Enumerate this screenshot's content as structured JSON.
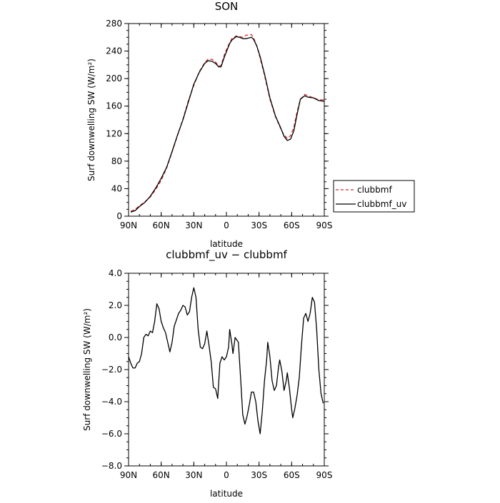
{
  "chart_data": [
    {
      "type": "line",
      "title": "SON",
      "xlabel": "latitude",
      "ylabel": "Surf downwelling SW (W/m²)",
      "xlim": [
        90,
        -90
      ],
      "ylim": [
        0,
        280
      ],
      "x_ticks": [
        90,
        60,
        30,
        0,
        -30,
        -60,
        -90
      ],
      "x_tick_labels": [
        "90N",
        "60N",
        "30N",
        "0",
        "30S",
        "60S",
        "90S"
      ],
      "y_ticks": [
        0,
        40,
        80,
        120,
        160,
        200,
        240,
        280
      ],
      "y_tick_labels": [
        "0",
        "40",
        "80",
        "120",
        "160",
        "200",
        "240",
        "280"
      ],
      "legend": {
        "placement": "right"
      },
      "series": [
        {
          "name": "clubbmf",
          "color": "#d62728",
          "dash": "dashed",
          "points": [
            [
              88,
              7
            ],
            [
              84,
              10
            ],
            [
              80,
              15
            ],
            [
              75,
              21
            ],
            [
              70,
              28
            ],
            [
              65,
              39
            ],
            [
              60,
              52
            ],
            [
              55,
              70
            ],
            [
              50,
              93
            ],
            [
              45,
              117
            ],
            [
              40,
              141
            ],
            [
              35,
              168
            ],
            [
              30,
              190
            ],
            [
              25,
              210
            ],
            [
              20,
              223
            ],
            [
              17,
              228
            ],
            [
              13,
              228
            ],
            [
              10,
              224
            ],
            [
              7,
              218
            ],
            [
              5,
              219
            ],
            [
              2,
              234
            ],
            [
              -1,
              246
            ],
            [
              -3,
              252
            ],
            [
              -5,
              258
            ],
            [
              -9,
              262
            ],
            [
              -12,
              261
            ],
            [
              -15,
              260
            ],
            [
              -18,
              263
            ],
            [
              -23,
              264
            ],
            [
              -25,
              259
            ],
            [
              -28,
              247
            ],
            [
              -31,
              230
            ],
            [
              -35,
              205
            ],
            [
              -40,
              170
            ],
            [
              -45,
              145
            ],
            [
              -50,
              127
            ],
            [
              -53,
              118
            ],
            [
              -56,
              113
            ],
            [
              -59,
              117
            ],
            [
              -62,
              129
            ],
            [
              -65,
              152
            ],
            [
              -68,
              170
            ],
            [
              -72,
              177
            ],
            [
              -75,
              175
            ],
            [
              -80,
              172
            ],
            [
              -85,
              169
            ],
            [
              -90,
              169
            ]
          ]
        },
        {
          "name": "clubbmf_uv",
          "color": "#000000",
          "dash": "solid",
          "points": [
            [
              88,
              6
            ],
            [
              84,
              8
            ],
            [
              80,
              14
            ],
            [
              75,
              20
            ],
            [
              70,
              29
            ],
            [
              65,
              41
            ],
            [
              60,
              55
            ],
            [
              55,
              71
            ],
            [
              50,
              94
            ],
            [
              45,
              118
            ],
            [
              40,
              140
            ],
            [
              35,
              166
            ],
            [
              30,
              192
            ],
            [
              25,
              209
            ],
            [
              20,
              222
            ],
            [
              17,
              226
            ],
            [
              13,
              225
            ],
            [
              10,
              222
            ],
            [
              7,
              217
            ],
            [
              5,
              217
            ],
            [
              2,
              231
            ],
            [
              -1,
              243
            ],
            [
              -3,
              251
            ],
            [
              -5,
              256
            ],
            [
              -9,
              261
            ],
            [
              -12,
              260
            ],
            [
              -15,
              258
            ],
            [
              -18,
              258
            ],
            [
              -23,
              260
            ],
            [
              -25,
              257
            ],
            [
              -28,
              247
            ],
            [
              -31,
              232
            ],
            [
              -35,
              207
            ],
            [
              -40,
              172
            ],
            [
              -45,
              146
            ],
            [
              -50,
              128
            ],
            [
              -53,
              116
            ],
            [
              -56,
              110
            ],
            [
              -59,
              112
            ],
            [
              -62,
              124
            ],
            [
              -65,
              148
            ],
            [
              -68,
              170
            ],
            [
              -72,
              175
            ],
            [
              -75,
              173
            ],
            [
              -80,
              172
            ],
            [
              -85,
              168
            ],
            [
              -90,
              167
            ]
          ]
        }
      ]
    },
    {
      "type": "line",
      "title": "clubbmf_uv − clubbmf",
      "xlabel": "latitude",
      "ylabel": "Surf downwelling SW (W/m²)",
      "xlim": [
        90,
        -90
      ],
      "ylim": [
        -8.0,
        4.0
      ],
      "x_ticks": [
        90,
        60,
        30,
        0,
        -30,
        -60,
        -90
      ],
      "x_tick_labels": [
        "90N",
        "60N",
        "30N",
        "0",
        "30S",
        "60S",
        "90S"
      ],
      "y_ticks": [
        -8,
        -6,
        -4,
        -2,
        0,
        2,
        4
      ],
      "y_tick_labels": [
        "−8.0",
        "−6.0",
        "−4.0",
        "−2.0",
        "0.0",
        "2.0",
        "4.0"
      ],
      "series": [
        {
          "color": "#000000",
          "dash": "solid",
          "points": [
            [
              90,
              -1.2
            ],
            [
              88,
              -1.6
            ],
            [
              86,
              -1.9
            ],
            [
              84,
              -1.9
            ],
            [
              82,
              -1.6
            ],
            [
              80,
              -1.5
            ],
            [
              78,
              -1.0
            ],
            [
              76,
              0.0
            ],
            [
              74,
              0.2
            ],
            [
              72,
              0.1
            ],
            [
              70,
              0.4
            ],
            [
              68,
              0.3
            ],
            [
              66,
              1.0
            ],
            [
              64,
              2.1
            ],
            [
              62,
              1.8
            ],
            [
              60,
              1.0
            ],
            [
              58,
              0.6
            ],
            [
              56,
              0.3
            ],
            [
              54,
              -0.3
            ],
            [
              52,
              -0.9
            ],
            [
              50,
              -0.3
            ],
            [
              48,
              0.7
            ],
            [
              46,
              1.1
            ],
            [
              44,
              1.5
            ],
            [
              42,
              1.7
            ],
            [
              40,
              2.0
            ],
            [
              38,
              1.9
            ],
            [
              36,
              1.4
            ],
            [
              34,
              1.6
            ],
            [
              32,
              2.5
            ],
            [
              30,
              3.1
            ],
            [
              28,
              2.5
            ],
            [
              26,
              0.5
            ],
            [
              24,
              -0.6
            ],
            [
              22,
              -0.7
            ],
            [
              20,
              -0.4
            ],
            [
              18,
              0.4
            ],
            [
              16,
              -0.5
            ],
            [
              14,
              -1.5
            ],
            [
              12,
              -3.1
            ],
            [
              10,
              -3.2
            ],
            [
              8,
              -3.8
            ],
            [
              6,
              -1.6
            ],
            [
              4,
              -1.2
            ],
            [
              2,
              -1.4
            ],
            [
              0,
              -1.2
            ],
            [
              -2,
              -0.6
            ],
            [
              -3,
              0.5
            ],
            [
              -5,
              -0.4
            ],
            [
              -6,
              -1.0
            ],
            [
              -8,
              0.0
            ],
            [
              -11,
              -0.3
            ],
            [
              -13,
              -2.5
            ],
            [
              -15,
              -4.8
            ],
            [
              -17,
              -5.4
            ],
            [
              -19,
              -4.9
            ],
            [
              -21,
              -4.2
            ],
            [
              -23,
              -3.4
            ],
            [
              -25,
              -3.4
            ],
            [
              -27,
              -4.0
            ],
            [
              -29,
              -5.2
            ],
            [
              -31,
              -6.0
            ],
            [
              -33,
              -4.6
            ],
            [
              -35,
              -2.7
            ],
            [
              -37,
              -1.4
            ],
            [
              -38,
              -0.3
            ],
            [
              -40,
              -1.2
            ],
            [
              -42,
              -2.7
            ],
            [
              -44,
              -3.3
            ],
            [
              -46,
              -3.0
            ],
            [
              -48,
              -1.8
            ],
            [
              -49,
              -1.4
            ],
            [
              -51,
              -2.1
            ],
            [
              -53,
              -3.3
            ],
            [
              -55,
              -2.7
            ],
            [
              -56,
              -2.2
            ],
            [
              -58,
              -3.2
            ],
            [
              -60,
              -4.5
            ],
            [
              -61,
              -5.0
            ],
            [
              -63,
              -4.4
            ],
            [
              -65,
              -3.6
            ],
            [
              -67,
              -2.5
            ],
            [
              -69,
              -0.5
            ],
            [
              -71,
              1.2
            ],
            [
              -73,
              1.5
            ],
            [
              -75,
              1.0
            ],
            [
              -77,
              1.5
            ],
            [
              -79,
              2.5
            ],
            [
              -81,
              2.2
            ],
            [
              -83,
              0.5
            ],
            [
              -85,
              -2.0
            ],
            [
              -87,
              -3.5
            ],
            [
              -89,
              -4.1
            ]
          ]
        }
      ]
    }
  ]
}
